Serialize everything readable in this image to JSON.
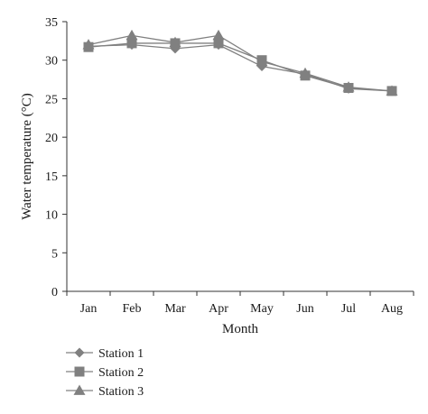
{
  "chart_data": {
    "type": "line",
    "xlabel": "Month",
    "ylabel": "Water temperature (°C)",
    "categories": [
      "Jan",
      "Feb",
      "Mar",
      "Apr",
      "May",
      "Jun",
      "Jul",
      "Aug"
    ],
    "ylim": [
      0,
      35
    ],
    "yticks": [
      0,
      5,
      10,
      15,
      20,
      25,
      30,
      35
    ],
    "grid": false,
    "legend_position": "bottom-left",
    "series": [
      {
        "name": "Station 1",
        "marker": "diamond",
        "color": "#808080",
        "values": [
          31.8,
          32.0,
          31.5,
          32.0,
          29.2,
          28.2,
          26.3,
          26.0
        ]
      },
      {
        "name": "Station 2",
        "marker": "square",
        "color": "#808080",
        "values": [
          31.7,
          32.2,
          32.2,
          32.2,
          30.0,
          28.0,
          26.4,
          26.0
        ]
      },
      {
        "name": "Station 3",
        "marker": "triangle",
        "color": "#808080",
        "values": [
          32.0,
          33.2,
          32.3,
          33.2,
          29.8,
          28.3,
          26.5,
          26.0
        ]
      }
    ]
  }
}
